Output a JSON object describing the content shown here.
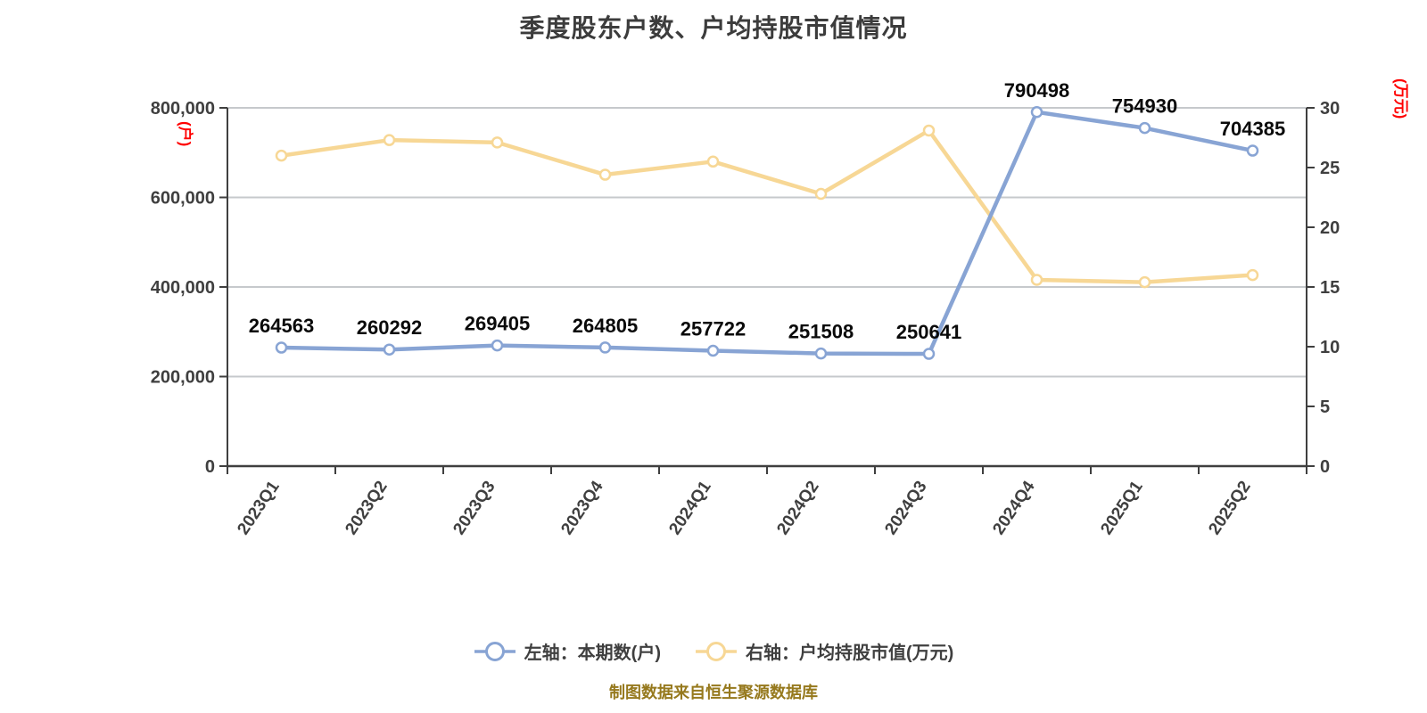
{
  "footer": "制图数据来自恒生聚源数据库",
  "colors": {
    "series_left_blue": "#88A4D4",
    "series_right_yellow": "#F7D795",
    "grid": "#C6C9CC",
    "axis": "#3F3F3F",
    "title_text": "#3C3C3C",
    "tick_text": "#3F3F3F",
    "data_label_text": "#0A0A0A",
    "axis_unit_red": "#FF0000",
    "footer_gold": "#96791D",
    "marker_fill": "#FFFFFF"
  },
  "chart_data": {
    "type": "line",
    "title": "季度股东户数、户均持股市值情况",
    "categories": [
      "2023Q1",
      "2023Q2",
      "2023Q3",
      "2023Q4",
      "2024Q1",
      "2024Q2",
      "2024Q3",
      "2024Q4",
      "2025Q1",
      "2025Q2"
    ],
    "series": [
      {
        "name": "左轴：本期数(户)",
        "yAxis": "left",
        "color": "#88A4D4",
        "show_labels": true,
        "values": [
          264563,
          260292,
          269405,
          264805,
          257722,
          251508,
          250641,
          790498,
          754930,
          704385
        ]
      },
      {
        "name": "右轴：户均持股市值(万元)",
        "yAxis": "right",
        "color": "#F7D795",
        "show_labels": false,
        "values": [
          26.0,
          27.3,
          27.1,
          24.4,
          25.5,
          22.8,
          28.1,
          15.6,
          15.4,
          16.0
        ]
      }
    ],
    "left_axis": {
      "label": "(户)",
      "min": 0,
      "max": 800000,
      "ticks": [
        {
          "value": 0,
          "label": "0"
        },
        {
          "value": 200000,
          "label": "200,000"
        },
        {
          "value": 400000,
          "label": "400,000"
        },
        {
          "value": 600000,
          "label": "600,000"
        },
        {
          "value": 800000,
          "label": "800,000"
        }
      ]
    },
    "right_axis": {
      "label": "(万元)",
      "min": 0,
      "max": 30,
      "ticks": [
        {
          "value": 0,
          "label": "0"
        },
        {
          "value": 5,
          "label": "5"
        },
        {
          "value": 10,
          "label": "10"
        },
        {
          "value": 15,
          "label": "15"
        },
        {
          "value": 20,
          "label": "20"
        },
        {
          "value": 25,
          "label": "25"
        },
        {
          "value": 30,
          "label": "30"
        }
      ]
    },
    "legend_position": "bottom",
    "grid": true
  }
}
